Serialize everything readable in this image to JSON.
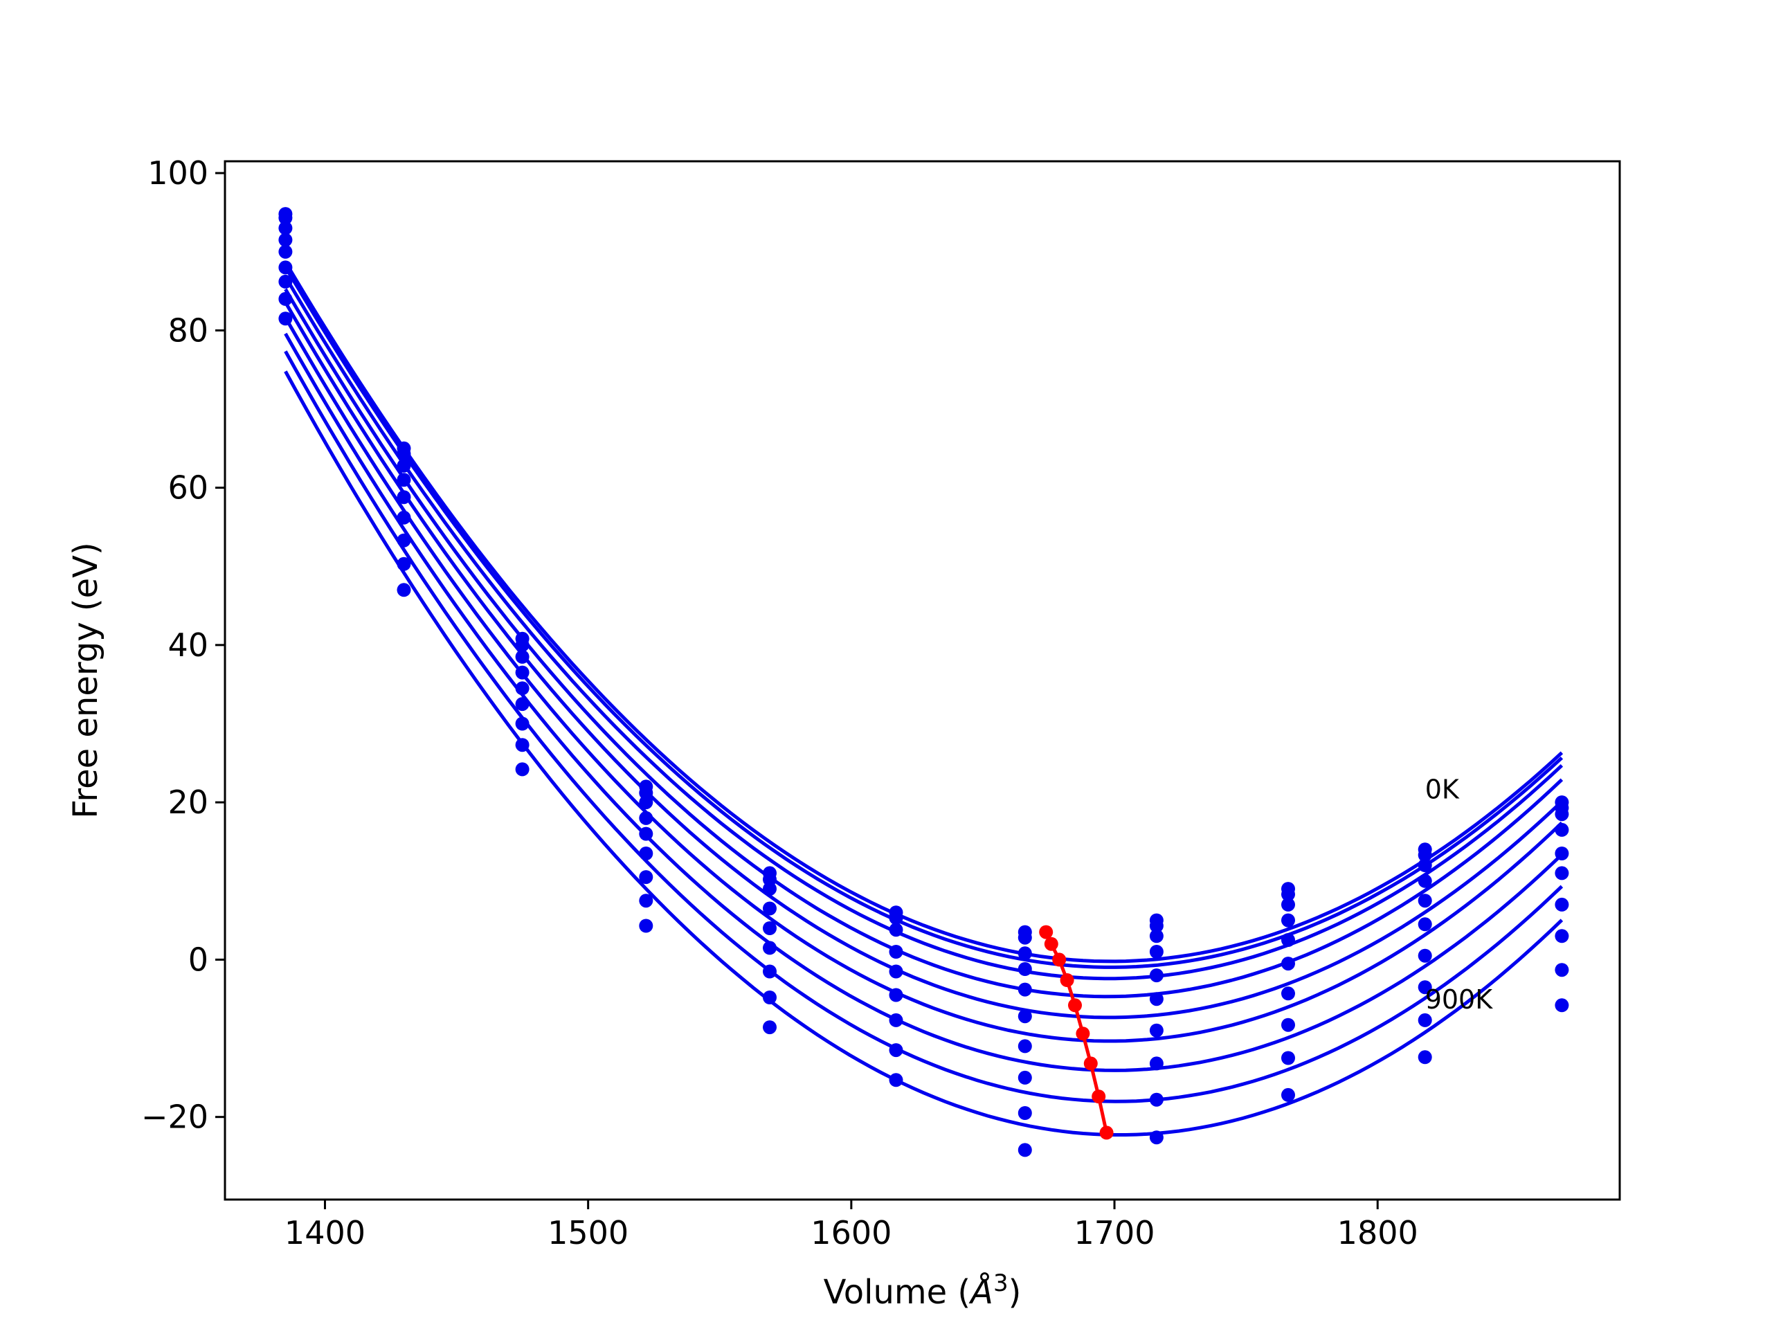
{
  "chart_data": {
    "type": "line",
    "title": "",
    "xlabel_prefix": "Volume (",
    "xlabel_unit": "Å",
    "xlabel_exp": "3",
    "xlabel_suffix": ")",
    "ylabel": "Free energy (eV)",
    "xlim": [
      1362,
      1892
    ],
    "ylim": [
      -30.5,
      101.5
    ],
    "xticks": [
      1400,
      1500,
      1600,
      1700,
      1800
    ],
    "yticks": [
      -20,
      0,
      20,
      40,
      60,
      80,
      100
    ],
    "ytick_labels": [
      "−20",
      "0",
      "20",
      "40",
      "60",
      "80",
      "100"
    ],
    "grid": false,
    "legend": "none",
    "colors": {
      "curves": "#0000ee",
      "minima": "#ff0000",
      "frame": "#000000"
    },
    "volumes": [
      1385,
      1430,
      1475,
      1522,
      1569,
      1617,
      1666,
      1716,
      1766,
      1818,
      1870
    ],
    "series": [
      {
        "values": [
          94.8,
          65.0,
          40.8,
          22.0,
          11.0,
          6.0,
          3.5,
          5.0,
          9.0,
          14.0,
          20.0
        ]
      },
      {
        "values": [
          94.3,
          64.3,
          40.0,
          21.2,
          10.2,
          5.3,
          2.8,
          4.3,
          8.3,
          13.3,
          19.3
        ]
      },
      {
        "values": [
          93.0,
          62.8,
          38.5,
          20.0,
          9.0,
          3.8,
          0.8,
          3.0,
          7.0,
          12.0,
          18.5
        ]
      },
      {
        "values": [
          91.5,
          61.0,
          36.5,
          18.0,
          6.5,
          1.0,
          -1.2,
          1.0,
          5.0,
          10.0,
          16.5
        ]
      },
      {
        "values": [
          90.0,
          58.8,
          34.5,
          16.0,
          4.0,
          -1.5,
          -3.8,
          -2.0,
          2.5,
          7.5,
          13.5
        ]
      },
      {
        "values": [
          88.0,
          56.2,
          32.5,
          13.5,
          1.5,
          -4.5,
          -7.2,
          -5.0,
          -0.5,
          4.5,
          11.0
        ]
      },
      {
        "values": [
          86.2,
          53.3,
          30.0,
          10.5,
          -1.5,
          -7.7,
          -11.0,
          -9.0,
          -4.3,
          0.5,
          7.0
        ]
      },
      {
        "values": [
          84.0,
          50.3,
          27.3,
          7.5,
          -4.8,
          -11.5,
          -15.0,
          -13.2,
          -8.3,
          -3.5,
          3.0
        ]
      },
      {
        "values": [
          81.5,
          47.0,
          24.2,
          4.3,
          -8.6,
          -15.3,
          -19.5,
          -17.8,
          -12.5,
          -7.7,
          -1.3
        ]
      },
      {
        "values": [
          null,
          null,
          null,
          null,
          null,
          null,
          -24.2,
          -22.6,
          -17.2,
          -12.4,
          -5.8
        ]
      }
    ],
    "minima": {
      "x": [
        1674,
        1676,
        1679,
        1682,
        1685,
        1688,
        1691,
        1694,
        1697
      ],
      "y": [
        3.5,
        2.0,
        0.0,
        -2.6,
        -5.8,
        -9.4,
        -13.2,
        -17.4,
        -22.0
      ]
    },
    "annotations": [
      {
        "text": "0K",
        "x": 1818,
        "y": 20.5
      },
      {
        "text": "900K",
        "x": 1818,
        "y": -6.2
      }
    ]
  }
}
